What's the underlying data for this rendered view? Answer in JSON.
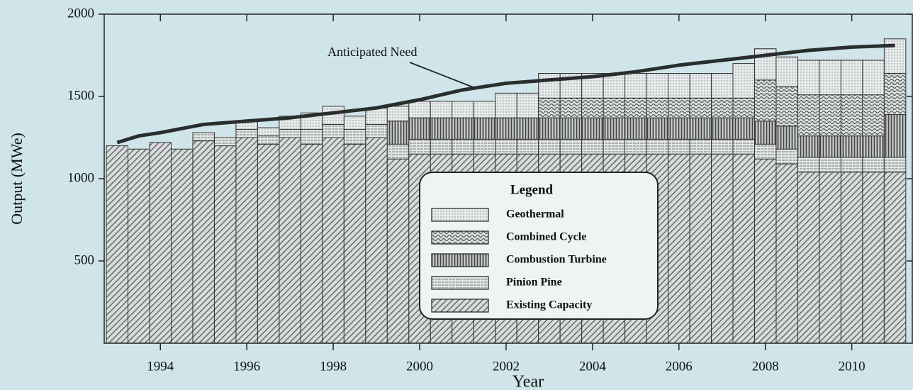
{
  "chart_data": {
    "type": "stacked-bar",
    "x_label": "Year",
    "y_label": "Output (MWe)",
    "x": [
      1993,
      1993.5,
      1994,
      1994.5,
      1995,
      1995.5,
      1996,
      1996.5,
      1997,
      1997.5,
      1998,
      1998.5,
      1999,
      1999.5,
      2000,
      2000.5,
      2001,
      2001.5,
      2002,
      2002.5,
      2003,
      2003.5,
      2004,
      2004.5,
      2005,
      2005.5,
      2006,
      2006.5,
      2007,
      2007.5,
      2008,
      2008.5,
      2009,
      2009.5,
      2010,
      2010.5,
      2011
    ],
    "xlim": [
      1992.7,
      2011.4
    ],
    "xticks": [
      1994,
      1996,
      1998,
      2000,
      2002,
      2004,
      2006,
      2008,
      2010
    ],
    "ylim": [
      0,
      2000
    ],
    "yticks": [
      500,
      1000,
      1500,
      2000
    ],
    "series": [
      {
        "name": "Existing Capacity",
        "pattern": "diagonal",
        "color": "#8a8f90",
        "values": [
          1200,
          1180,
          1220,
          1180,
          1230,
          1200,
          1250,
          1210,
          1250,
          1210,
          1250,
          1210,
          1250,
          1120,
          1150,
          1150,
          1150,
          1150,
          1150,
          1150,
          1150,
          1150,
          1150,
          1150,
          1150,
          1150,
          1150,
          1150,
          1150,
          1150,
          1120,
          1090,
          1040,
          1040,
          1040,
          1040,
          1040
        ]
      },
      {
        "name": "Pinion Pine",
        "pattern": "horizontal",
        "color": "#8a8f90",
        "values": [
          0,
          0,
          0,
          0,
          50,
          50,
          50,
          50,
          50,
          90,
          80,
          90,
          80,
          90,
          90,
          90,
          90,
          90,
          90,
          90,
          90,
          90,
          90,
          90,
          90,
          90,
          90,
          90,
          90,
          90,
          90,
          90,
          90,
          90,
          90,
          90,
          90
        ]
      },
      {
        "name": "Combustion Turbine",
        "pattern": "vertical",
        "color": "#6f7475",
        "values": [
          0,
          0,
          0,
          0,
          0,
          0,
          0,
          0,
          0,
          0,
          0,
          0,
          0,
          140,
          130,
          130,
          130,
          130,
          130,
          130,
          130,
          130,
          130,
          130,
          130,
          130,
          130,
          130,
          130,
          130,
          140,
          140,
          130,
          130,
          130,
          130,
          260
        ]
      },
      {
        "name": "Combined Cycle",
        "pattern": "wavy",
        "color": "#7d8283",
        "values": [
          0,
          0,
          0,
          0,
          0,
          0,
          0,
          0,
          0,
          0,
          0,
          0,
          0,
          0,
          0,
          0,
          0,
          0,
          0,
          0,
          120,
          120,
          120,
          120,
          120,
          120,
          120,
          120,
          120,
          120,
          250,
          240,
          250,
          250,
          250,
          250,
          250
        ]
      },
      {
        "name": "Geothermal",
        "pattern": "dots",
        "color": "#9aa0a1",
        "values": [
          0,
          0,
          0,
          0,
          0,
          0,
          50,
          50,
          80,
          100,
          110,
          80,
          100,
          90,
          100,
          100,
          100,
          100,
          150,
          150,
          150,
          150,
          150,
          150,
          150,
          150,
          150,
          150,
          150,
          210,
          190,
          180,
          210,
          210,
          210,
          210,
          210
        ]
      }
    ],
    "need": {
      "name": "Anticipated Need",
      "color": "#2a2d2e",
      "x": [
        1993,
        1993.5,
        1994,
        1995,
        1996,
        1997,
        1998,
        1999,
        2000,
        2001,
        2002,
        2003,
        2004,
        2005,
        2006,
        2007,
        2008,
        2009,
        2010,
        2011
      ],
      "values": [
        1220,
        1260,
        1280,
        1330,
        1350,
        1370,
        1400,
        1430,
        1480,
        1540,
        1580,
        1600,
        1620,
        1650,
        1690,
        1720,
        1750,
        1780,
        1800,
        1810
      ]
    },
    "legend": {
      "title": "Legend",
      "position": "center"
    }
  }
}
